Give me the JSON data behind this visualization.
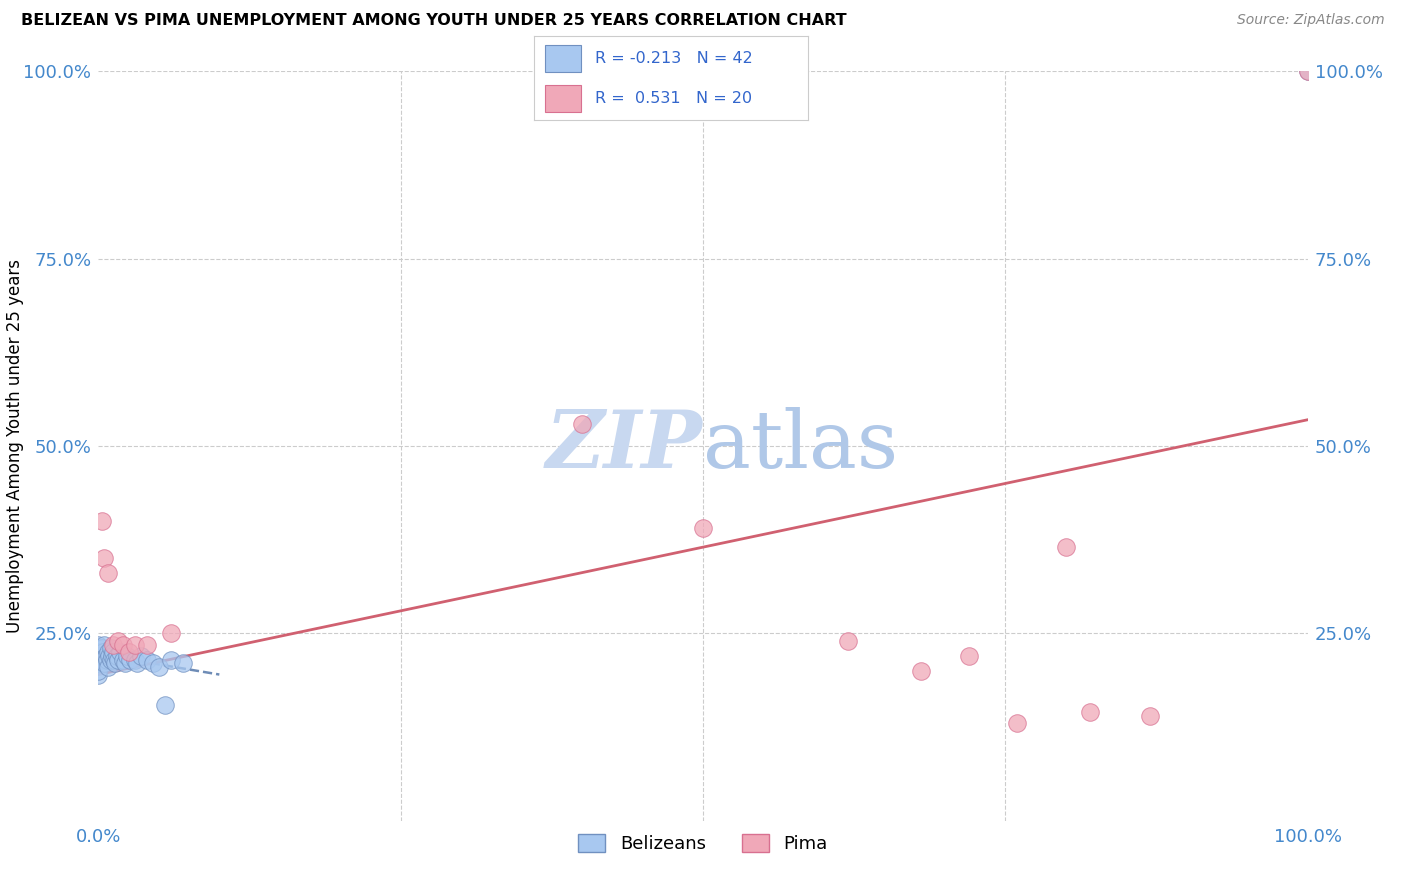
{
  "title": "BELIZEAN VS PIMA UNEMPLOYMENT AMONG YOUTH UNDER 25 YEARS CORRELATION CHART",
  "source": "Source: ZipAtlas.com",
  "ylabel_label": "Unemployment Among Youth under 25 years",
  "legend_label1": "Belizeans",
  "legend_label2": "Pima",
  "R1": -0.213,
  "N1": 42,
  "R2": 0.531,
  "N2": 20,
  "color_blue": "#A8C8F0",
  "color_pink": "#F0A8B8",
  "edge_blue": "#7090C0",
  "edge_pink": "#D87090",
  "line_blue_color": "#5578AA",
  "line_pink_color": "#D06070",
  "watermark_color": "#C8D8F0",
  "belizean_x": [
    0.0,
    0.0,
    0.0,
    0.0,
    0.0,
    0.0,
    0.0,
    0.0,
    0.002,
    0.003,
    0.003,
    0.004,
    0.005,
    0.005,
    0.006,
    0.007,
    0.008,
    0.008,
    0.009,
    0.01,
    0.01,
    0.011,
    0.012,
    0.013,
    0.014,
    0.015,
    0.016,
    0.018,
    0.02,
    0.022,
    0.024,
    0.026,
    0.03,
    0.032,
    0.035,
    0.04,
    0.045,
    0.05,
    0.055,
    0.06,
    0.07,
    1.0
  ],
  "belizean_y": [
    0.22,
    0.23,
    0.195,
    0.21,
    0.235,
    0.215,
    0.225,
    0.2,
    0.22,
    0.23,
    0.215,
    0.225,
    0.21,
    0.235,
    0.22,
    0.215,
    0.225,
    0.205,
    0.22,
    0.23,
    0.215,
    0.22,
    0.225,
    0.215,
    0.21,
    0.22,
    0.215,
    0.225,
    0.215,
    0.21,
    0.22,
    0.215,
    0.215,
    0.21,
    0.22,
    0.215,
    0.21,
    0.205,
    0.155,
    0.215,
    0.21,
    1.0
  ],
  "pima_x": [
    0.003,
    0.005,
    0.008,
    0.012,
    0.016,
    0.02,
    0.025,
    0.03,
    0.04,
    0.06,
    0.4,
    0.5,
    0.62,
    0.68,
    0.72,
    0.76,
    0.8,
    0.82,
    0.87,
    1.0
  ],
  "pima_y": [
    0.4,
    0.35,
    0.33,
    0.235,
    0.24,
    0.235,
    0.225,
    0.235,
    0.235,
    0.25,
    0.53,
    0.39,
    0.24,
    0.2,
    0.22,
    0.13,
    0.365,
    0.145,
    0.14,
    1.0
  ],
  "blue_line_x": [
    0.0,
    0.1
  ],
  "blue_line_y": [
    0.222,
    0.195
  ],
  "pink_line_x": [
    0.0,
    1.0
  ],
  "pink_line_y": [
    0.195,
    0.535
  ],
  "xlim": [
    0.0,
    1.0
  ],
  "ylim": [
    0.0,
    1.0
  ],
  "yticks": [
    0.25,
    0.5,
    0.75,
    1.0
  ],
  "xticks": [
    0.0,
    1.0
  ],
  "tick_color": "#4488CC",
  "grid_color": "#CCCCCC"
}
